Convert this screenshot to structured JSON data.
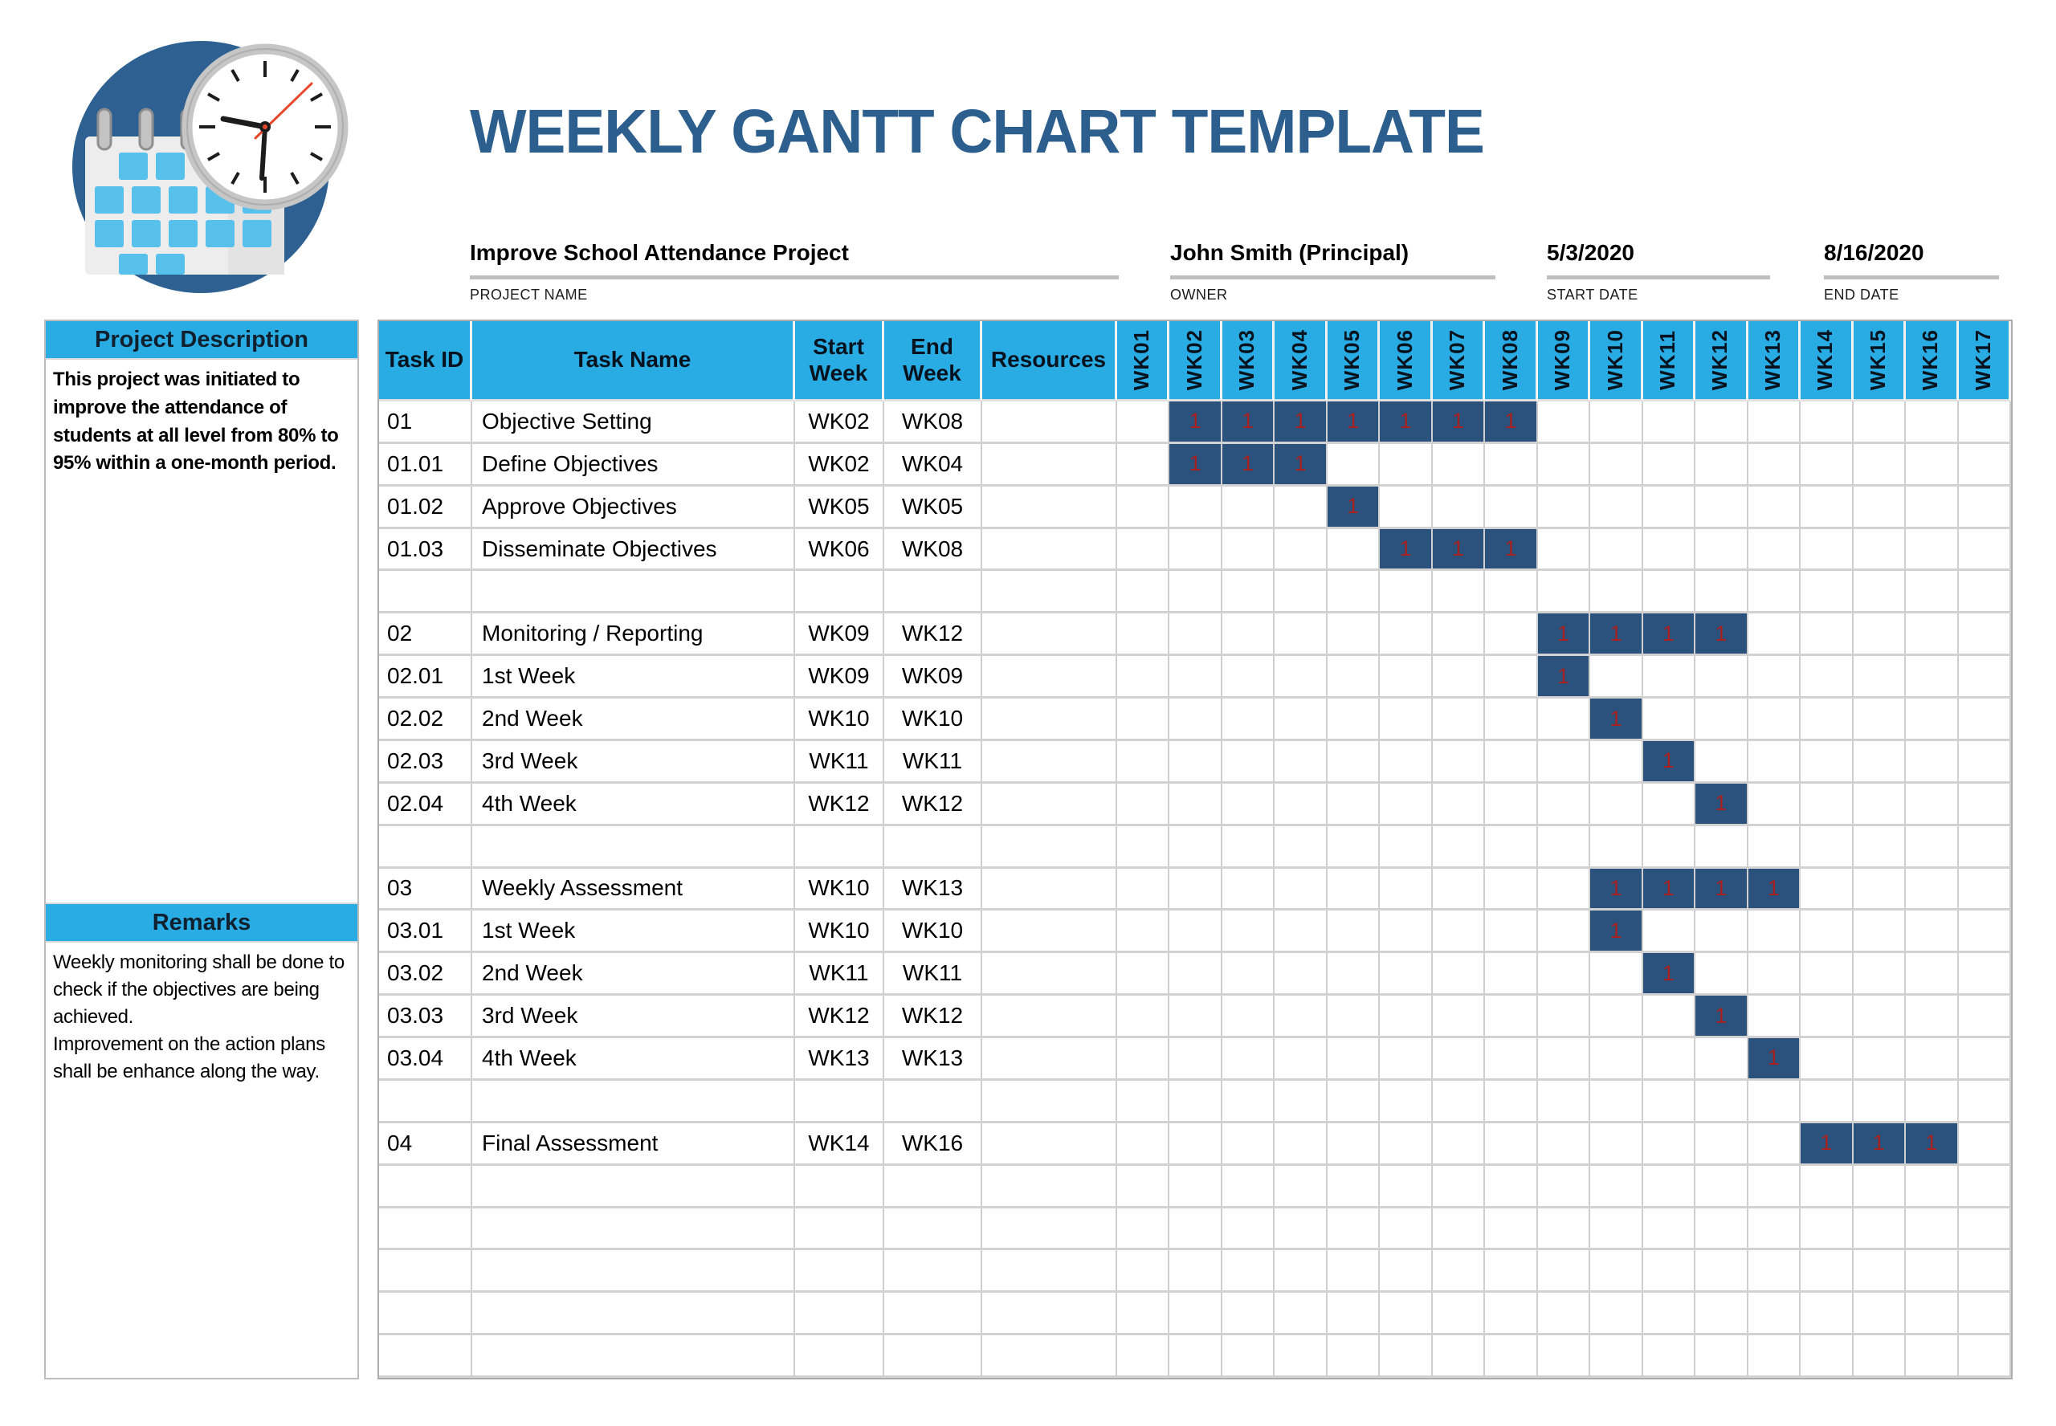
{
  "title": "WEEKLY GANTT CHART TEMPLATE",
  "logo": {
    "icon": "calendar-clock-logo"
  },
  "colors": {
    "accent_cyan": "#29ACE3",
    "bar_navy": "#2A527C",
    "bar_mark_red": "#A6201F",
    "title_blue": "#2D5F8E",
    "grid_gray": "#CFCFCF",
    "underline_gray": "#BFBFBF"
  },
  "project_info": {
    "project_name": {
      "value": "Improve School Attendance Project",
      "label": "PROJECT NAME"
    },
    "owner": {
      "value": "John Smith (Principal)",
      "label": "OWNER"
    },
    "start_date": {
      "value": "5/3/2020",
      "label": "START DATE"
    },
    "end_date": {
      "value": "8/16/2020",
      "label": "END DATE"
    }
  },
  "sidebar": {
    "description_header": "Project Description",
    "description_text": "This project was initiated to improve the attendance of students at all level from 80% to 95% within a one-month period.",
    "remarks_header": "Remarks",
    "remarks_lines": [
      "Weekly monitoring shall be done to check if the objectives are being achieved.",
      "Improvement on the action plans shall be enhance along the way."
    ]
  },
  "table": {
    "columns": [
      "Task ID",
      "Task Name",
      "Start Week",
      "End Week",
      "Resources"
    ],
    "week_columns": [
      "WK01",
      "WK02",
      "WK03",
      "WK04",
      "WK05",
      "WK06",
      "WK07",
      "WK08",
      "WK09",
      "WK10",
      "WK11",
      "WK12",
      "WK13",
      "WK14",
      "WK15",
      "WK16",
      "WK17"
    ],
    "bar_mark": "1",
    "rows": [
      {
        "task_id": "01",
        "task_name": "Objective Setting",
        "start_week": "WK02",
        "end_week": "WK08",
        "resources": "",
        "bars": [
          2,
          3,
          4,
          5,
          6,
          7,
          8
        ]
      },
      {
        "task_id": "01.01",
        "task_name": "Define Objectives",
        "start_week": "WK02",
        "end_week": "WK04",
        "resources": "",
        "bars": [
          2,
          3,
          4
        ]
      },
      {
        "task_id": "01.02",
        "task_name": "Approve Objectives",
        "start_week": "WK05",
        "end_week": "WK05",
        "resources": "",
        "bars": [
          5
        ]
      },
      {
        "task_id": "01.03",
        "task_name": "Disseminate Objectives",
        "start_week": "WK06",
        "end_week": "WK08",
        "resources": "",
        "bars": [
          6,
          7,
          8
        ]
      },
      {
        "task_id": "",
        "task_name": "",
        "start_week": "",
        "end_week": "",
        "resources": "",
        "bars": []
      },
      {
        "task_id": "02",
        "task_name": "Monitoring / Reporting",
        "start_week": "WK09",
        "end_week": "WK12",
        "resources": "",
        "bars": [
          9,
          10,
          11,
          12
        ]
      },
      {
        "task_id": "02.01",
        "task_name": "1st Week",
        "start_week": "WK09",
        "end_week": "WK09",
        "resources": "",
        "bars": [
          9
        ]
      },
      {
        "task_id": "02.02",
        "task_name": "2nd Week",
        "start_week": "WK10",
        "end_week": "WK10",
        "resources": "",
        "bars": [
          10
        ]
      },
      {
        "task_id": "02.03",
        "task_name": "3rd Week",
        "start_week": "WK11",
        "end_week": "WK11",
        "resources": "",
        "bars": [
          11
        ]
      },
      {
        "task_id": "02.04",
        "task_name": "4th Week",
        "start_week": "WK12",
        "end_week": "WK12",
        "resources": "",
        "bars": [
          12
        ]
      },
      {
        "task_id": "",
        "task_name": "",
        "start_week": "",
        "end_week": "",
        "resources": "",
        "bars": []
      },
      {
        "task_id": "03",
        "task_name": "Weekly Assessment",
        "start_week": "WK10",
        "end_week": "WK13",
        "resources": "",
        "bars": [
          10,
          11,
          12,
          13
        ]
      },
      {
        "task_id": "03.01",
        "task_name": "1st Week",
        "start_week": "WK10",
        "end_week": "WK10",
        "resources": "",
        "bars": [
          10
        ]
      },
      {
        "task_id": "03.02",
        "task_name": "2nd Week",
        "start_week": "WK11",
        "end_week": "WK11",
        "resources": "",
        "bars": [
          11
        ]
      },
      {
        "task_id": "03.03",
        "task_name": "3rd Week",
        "start_week": "WK12",
        "end_week": "WK12",
        "resources": "",
        "bars": [
          12
        ]
      },
      {
        "task_id": "03.04",
        "task_name": "4th Week",
        "start_week": "WK13",
        "end_week": "WK13",
        "resources": "",
        "bars": [
          13
        ]
      },
      {
        "task_id": "",
        "task_name": "",
        "start_week": "",
        "end_week": "",
        "resources": "",
        "bars": []
      },
      {
        "task_id": "04",
        "task_name": "Final Assessment",
        "start_week": "WK14",
        "end_week": "WK16",
        "resources": "",
        "bars": [
          14,
          15,
          16
        ]
      },
      {
        "task_id": "",
        "task_name": "",
        "start_week": "",
        "end_week": "",
        "resources": "",
        "bars": []
      },
      {
        "task_id": "",
        "task_name": "",
        "start_week": "",
        "end_week": "",
        "resources": "",
        "bars": []
      },
      {
        "task_id": "",
        "task_name": "",
        "start_week": "",
        "end_week": "",
        "resources": "",
        "bars": []
      },
      {
        "task_id": "",
        "task_name": "",
        "start_week": "",
        "end_week": "",
        "resources": "",
        "bars": []
      },
      {
        "task_id": "",
        "task_name": "",
        "start_week": "",
        "end_week": "",
        "resources": "",
        "bars": []
      }
    ]
  },
  "chart_data": {
    "type": "table",
    "subtype": "gantt",
    "title": "WEEKLY GANTT CHART TEMPLATE",
    "project_name": "Improve School Attendance Project",
    "owner": "John Smith (Principal)",
    "start_date": "5/3/2020",
    "end_date": "8/16/2020",
    "x_categories": [
      "WK01",
      "WK02",
      "WK03",
      "WK04",
      "WK05",
      "WK06",
      "WK07",
      "WK08",
      "WK09",
      "WK10",
      "WK11",
      "WK12",
      "WK13",
      "WK14",
      "WK15",
      "WK16",
      "WK17"
    ],
    "cell_mark_value": "1",
    "tasks": [
      {
        "id": "01",
        "name": "Objective Setting",
        "start": "WK02",
        "end": "WK08",
        "marked_weeks": [
          2,
          3,
          4,
          5,
          6,
          7,
          8
        ]
      },
      {
        "id": "01.01",
        "name": "Define Objectives",
        "start": "WK02",
        "end": "WK04",
        "marked_weeks": [
          2,
          3,
          4
        ]
      },
      {
        "id": "01.02",
        "name": "Approve Objectives",
        "start": "WK05",
        "end": "WK05",
        "marked_weeks": [
          5
        ]
      },
      {
        "id": "01.03",
        "name": "Disseminate Objectives",
        "start": "WK06",
        "end": "WK08",
        "marked_weeks": [
          6,
          7,
          8
        ]
      },
      {
        "id": "02",
        "name": "Monitoring / Reporting",
        "start": "WK09",
        "end": "WK12",
        "marked_weeks": [
          9,
          10,
          11,
          12
        ]
      },
      {
        "id": "02.01",
        "name": "1st Week",
        "start": "WK09",
        "end": "WK09",
        "marked_weeks": [
          9
        ]
      },
      {
        "id": "02.02",
        "name": "2nd Week",
        "start": "WK10",
        "end": "WK10",
        "marked_weeks": [
          10
        ]
      },
      {
        "id": "02.03",
        "name": "3rd Week",
        "start": "WK11",
        "end": "WK11",
        "marked_weeks": [
          11
        ]
      },
      {
        "id": "02.04",
        "name": "4th Week",
        "start": "WK12",
        "end": "WK12",
        "marked_weeks": [
          12
        ]
      },
      {
        "id": "03",
        "name": "Weekly Assessment",
        "start": "WK10",
        "end": "WK13",
        "marked_weeks": [
          10,
          11,
          12,
          13
        ]
      },
      {
        "id": "03.01",
        "name": "1st Week",
        "start": "WK10",
        "end": "WK10",
        "marked_weeks": [
          10
        ]
      },
      {
        "id": "03.02",
        "name": "2nd Week",
        "start": "WK11",
        "end": "WK11",
        "marked_weeks": [
          11
        ]
      },
      {
        "id": "03.03",
        "name": "3rd Week",
        "start": "WK12",
        "end": "WK12",
        "marked_weeks": [
          12
        ]
      },
      {
        "id": "03.04",
        "name": "4th Week",
        "start": "WK13",
        "end": "WK13",
        "marked_weeks": [
          13
        ]
      },
      {
        "id": "04",
        "name": "Final Assessment",
        "start": "WK14",
        "end": "WK16",
        "marked_weeks": [
          14,
          15,
          16
        ]
      }
    ]
  }
}
